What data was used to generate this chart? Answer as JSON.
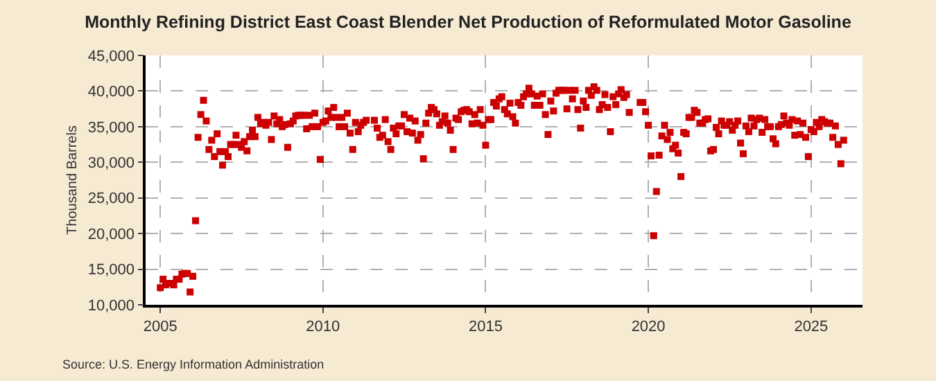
{
  "chart_data": {
    "type": "scatter",
    "title": "Monthly Refining District East Coast Blender Net Production of Reformulated Motor Gasoline",
    "ylabel": "Thousand Barrels",
    "annotations": [
      "Source: U.S. Energy Information Administration"
    ],
    "marker": "square",
    "grid": true,
    "xlim": [
      "2004-07-20",
      "2026-08-01"
    ],
    "xticks": [
      {
        "value": "2005-01",
        "label": "2005"
      },
      {
        "value": "2010-01",
        "label": "2010"
      },
      {
        "value": "2015-01",
        "label": "2015"
      },
      {
        "value": "2020-01",
        "label": "2020"
      },
      {
        "value": "2025-01",
        "label": "2025"
      }
    ],
    "ylim": [
      10000,
      45000
    ],
    "yticks": [
      {
        "value": 10000,
        "label": "10,000"
      },
      {
        "value": 15000,
        "label": "15,000"
      },
      {
        "value": 20000,
        "label": "20,000"
      },
      {
        "value": 25000,
        "label": "25,000"
      },
      {
        "value": 30000,
        "label": "30,000"
      },
      {
        "value": 35000,
        "label": "35,000"
      },
      {
        "value": 40000,
        "label": "40,000"
      },
      {
        "value": 45000,
        "label": "45,000"
      }
    ],
    "x": [
      "2005-01",
      "2005-02",
      "2005-03",
      "2005-04",
      "2005-05",
      "2005-06",
      "2005-07",
      "2005-08",
      "2005-09",
      "2005-10",
      "2005-11",
      "2005-12",
      "2006-01",
      "2006-02",
      "2006-03",
      "2006-04",
      "2006-05",
      "2006-06",
      "2006-07",
      "2006-08",
      "2006-09",
      "2006-10",
      "2006-11",
      "2006-12",
      "2007-01",
      "2007-02",
      "2007-03",
      "2007-04",
      "2007-05",
      "2007-06",
      "2007-07",
      "2007-08",
      "2007-09",
      "2007-10",
      "2007-11",
      "2007-12",
      "2008-01",
      "2008-02",
      "2008-03",
      "2008-04",
      "2008-05",
      "2008-06",
      "2008-07",
      "2008-08",
      "2008-09",
      "2008-10",
      "2008-11",
      "2008-12",
      "2009-01",
      "2009-02",
      "2009-03",
      "2009-04",
      "2009-05",
      "2009-06",
      "2009-07",
      "2009-08",
      "2009-09",
      "2009-10",
      "2009-11",
      "2009-12",
      "2010-01",
      "2010-02",
      "2010-03",
      "2010-04",
      "2010-05",
      "2010-06",
      "2010-07",
      "2010-08",
      "2010-09",
      "2010-10",
      "2010-11",
      "2010-12",
      "2011-01",
      "2011-02",
      "2011-03",
      "2011-04",
      "2011-05",
      "2011-08",
      "2011-09",
      "2011-10",
      "2011-11",
      "2011-12",
      "2012-01",
      "2012-02",
      "2012-03",
      "2012-04",
      "2012-05",
      "2012-06",
      "2012-07",
      "2012-08",
      "2012-09",
      "2012-10",
      "2012-11",
      "2012-12",
      "2013-01",
      "2013-02",
      "2013-03",
      "2013-04",
      "2013-05",
      "2013-06",
      "2013-07",
      "2013-08",
      "2013-09",
      "2013-10",
      "2013-11",
      "2013-12",
      "2014-01",
      "2014-02",
      "2014-03",
      "2014-04",
      "2014-05",
      "2014-06",
      "2014-07",
      "2014-08",
      "2014-09",
      "2014-10",
      "2014-11",
      "2014-12",
      "2015-01",
      "2015-02",
      "2015-03",
      "2015-04",
      "2015-05",
      "2015-06",
      "2015-07",
      "2015-08",
      "2015-09",
      "2015-10",
      "2015-11",
      "2015-12",
      "2016-01",
      "2016-02",
      "2016-03",
      "2016-04",
      "2016-05",
      "2016-06",
      "2016-07",
      "2016-08",
      "2016-09",
      "2016-10",
      "2016-11",
      "2016-12",
      "2017-01",
      "2017-02",
      "2017-03",
      "2017-04",
      "2017-05",
      "2017-06",
      "2017-07",
      "2017-08",
      "2017-09",
      "2017-10",
      "2017-11",
      "2017-12",
      "2018-01",
      "2018-02",
      "2018-03",
      "2018-04",
      "2018-05",
      "2018-06",
      "2018-07",
      "2018-08",
      "2018-09",
      "2018-10",
      "2018-11",
      "2018-12",
      "2019-01",
      "2019-02",
      "2019-03",
      "2019-04",
      "2019-05",
      "2019-06",
      "2019-10",
      "2019-11",
      "2019-12",
      "2020-01",
      "2020-02",
      "2020-03",
      "2020-04",
      "2020-05",
      "2020-06",
      "2020-07",
      "2020-08",
      "2020-09",
      "2020-10",
      "2020-11",
      "2020-12",
      "2021-01",
      "2021-02",
      "2021-03",
      "2021-04",
      "2021-05",
      "2021-06",
      "2021-07",
      "2021-08",
      "2021-09",
      "2021-10",
      "2021-11",
      "2021-12",
      "2022-01",
      "2022-02",
      "2022-03",
      "2022-04",
      "2022-05",
      "2022-06",
      "2022-07",
      "2022-08",
      "2022-09",
      "2022-10",
      "2022-11",
      "2022-12",
      "2023-01",
      "2023-02",
      "2023-03",
      "2023-04",
      "2023-05",
      "2023-06",
      "2023-07",
      "2023-08",
      "2023-09",
      "2023-10",
      "2023-11",
      "2023-12",
      "2024-01",
      "2024-02",
      "2024-03",
      "2024-04",
      "2024-05",
      "2024-06",
      "2024-07",
      "2024-08",
      "2024-09",
      "2024-10",
      "2024-11",
      "2024-12",
      "2025-01",
      "2025-02",
      "2025-03",
      "2025-04",
      "2025-05",
      "2025-06",
      "2025-07",
      "2025-08",
      "2025-09",
      "2025-10",
      "2025-11",
      "2025-12",
      "2026-01"
    ],
    "series": [
      {
        "color": "#cc0000",
        "values": [
          12400,
          13600,
          12800,
          13000,
          13000,
          12800,
          13600,
          13600,
          14300,
          14400,
          14400,
          11800,
          14000,
          21800,
          33500,
          36700,
          38700,
          35800,
          31800,
          33100,
          30800,
          34000,
          31500,
          29600,
          31500,
          30800,
          32500,
          32500,
          33800,
          32500,
          32100,
          32900,
          31600,
          33600,
          34500,
          33600,
          36300,
          35400,
          35600,
          35200,
          35600,
          33200,
          36500,
          35400,
          36000,
          35000,
          35300,
          32100,
          35400,
          35800,
          36500,
          36600,
          36600,
          36600,
          34700,
          36600,
          35000,
          36900,
          35000,
          30400,
          35600,
          35800,
          37200,
          36300,
          37700,
          36300,
          35000,
          36300,
          35000,
          36900,
          34100,
          31800,
          35600,
          34300,
          35200,
          35600,
          35900,
          35900,
          34800,
          33500,
          33800,
          36000,
          32900,
          31800,
          34800,
          34000,
          35100,
          35100,
          36700,
          34300,
          36200,
          34100,
          35800,
          33100,
          33900,
          30500,
          35500,
          36900,
          37700,
          37400,
          36800,
          35200,
          35700,
          36500,
          35500,
          34500,
          31800,
          36200,
          36000,
          37100,
          37300,
          37400,
          37100,
          35400,
          36700,
          35500,
          37400,
          35200,
          32400,
          36000,
          36000,
          38400,
          37900,
          38900,
          39200,
          37400,
          36800,
          38300,
          36400,
          35500,
          38400,
          38000,
          39200,
          39600,
          40400,
          39600,
          38000,
          39300,
          38000,
          39600,
          36700,
          33900,
          38600,
          37200,
          39700,
          40100,
          40100,
          40100,
          37500,
          40100,
          38900,
          40100,
          37400,
          34800,
          38600,
          37700,
          40100,
          39400,
          40600,
          40100,
          37400,
          38100,
          39500,
          37700,
          34300,
          39200,
          38100,
          39600,
          40200,
          39100,
          39500,
          37000,
          38400,
          38400,
          37100,
          35200,
          30900,
          19700,
          25900,
          31000,
          33700,
          35200,
          33200,
          34200,
          31900,
          32400,
          31300,
          28000,
          34200,
          34000,
          36300,
          36300,
          37300,
          37000,
          35500,
          35500,
          36000,
          36100,
          31600,
          31800,
          34900,
          34000,
          35800,
          35200,
          35200,
          35700,
          34500,
          35200,
          35800,
          32700,
          31200,
          35100,
          34300,
          36200,
          35100,
          36000,
          36200,
          34200,
          36000,
          35000,
          35000,
          33300,
          32600,
          35000,
          35300,
          36500,
          35500,
          35200,
          36000,
          33800,
          35800,
          33900,
          35500,
          33500,
          30800,
          34600,
          34300,
          35600,
          35000,
          36000,
          35700,
          35500,
          35500,
          33500,
          35100,
          32500,
          29800,
          33100
        ]
      }
    ]
  }
}
